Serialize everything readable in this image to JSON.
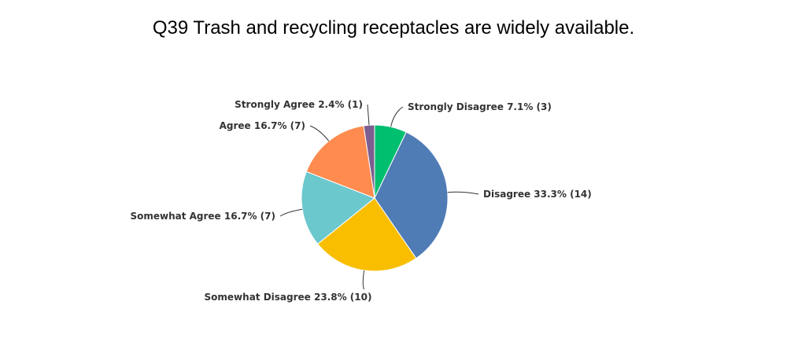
{
  "chart_data": {
    "type": "pie",
    "title": "Q39 Trash and recycling receptacles are widely available.",
    "slices": [
      {
        "name": "Strongly Disagree",
        "percent": 7.1,
        "count": 3,
        "label": "Strongly Disagree 7.1% (3)",
        "color": "#00BF6F"
      },
      {
        "name": "Disagree",
        "percent": 33.3,
        "count": 14,
        "label": "Disagree 33.3% (14)",
        "color": "#507CB6"
      },
      {
        "name": "Somewhat Disagree",
        "percent": 23.8,
        "count": 10,
        "label": "Somewhat Disagree 23.8% (10)",
        "color": "#F9BE00"
      },
      {
        "name": "Somewhat Agree",
        "percent": 16.7,
        "count": 7,
        "label": "Somewhat Agree 16.7% (7)",
        "color": "#6BC8CD"
      },
      {
        "name": "Agree",
        "percent": 16.7,
        "count": 7,
        "label": "Agree 16.7% (7)",
        "color": "#FF8B4F"
      },
      {
        "name": "Strongly Agree",
        "percent": 2.4,
        "count": 1,
        "label": "Strongly Agree 2.4% (1)",
        "color": "#7D5E90"
      }
    ]
  }
}
